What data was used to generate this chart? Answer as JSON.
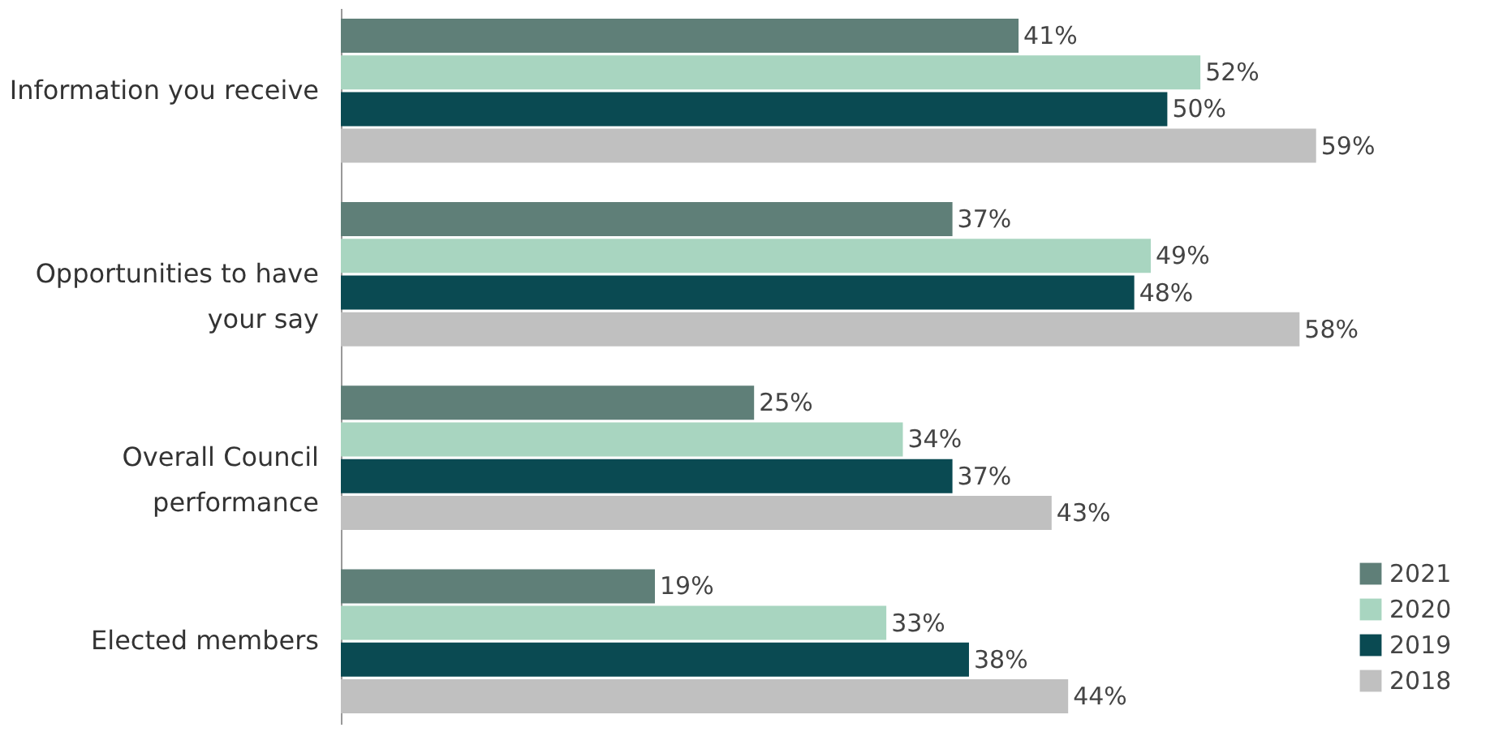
{
  "chart_data": {
    "type": "bar",
    "orientation": "horizontal",
    "legend": "bottom right",
    "grid": false,
    "categories": [
      "Information you receive",
      "Opportunities to have your say",
      "Overall Council performance",
      "Elected members"
    ],
    "series": [
      {
        "name": "2021",
        "color": "#5f7f78",
        "values": [
          41,
          37,
          25,
          19
        ],
        "value_labels": [
          "41%",
          "37%",
          "25%",
          "19%"
        ]
      },
      {
        "name": "2020",
        "color": "#a8d5c0",
        "values": [
          52,
          49,
          34,
          33
        ],
        "value_labels": [
          "52%",
          "49%",
          "34%",
          "33%"
        ]
      },
      {
        "name": "2019",
        "color": "#0a4a52",
        "values": [
          50,
          48,
          37,
          38
        ],
        "value_labels": [
          "50%",
          "48%",
          "37%",
          "38%"
        ]
      },
      {
        "name": "2018",
        "color": "#c0c0c0",
        "values": [
          59,
          58,
          43,
          44
        ],
        "value_labels": [
          "59%",
          "58%",
          "43%",
          "44%"
        ]
      }
    ]
  }
}
